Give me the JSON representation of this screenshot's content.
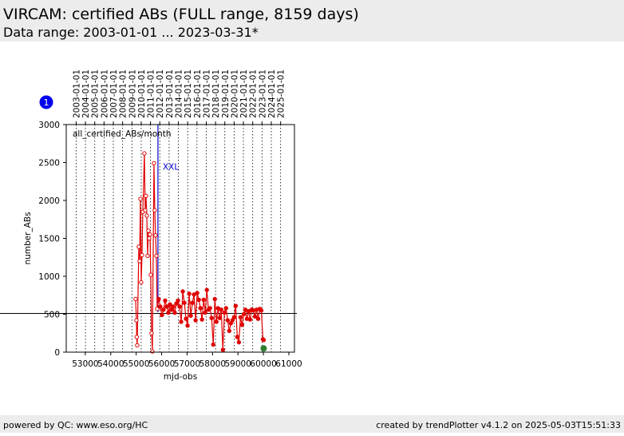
{
  "header": {
    "title": "VIRCAM: certified ABs (FULL range, 8159 days)",
    "subtitle": "Data range: 2003-01-01 ... 2023-03-31*"
  },
  "badge": "1",
  "footer": {
    "left": "powered by QC: www.eso.org/HC",
    "right": "created by trendPlotter v4.1.2 on 2025-05-03T15:51:33"
  },
  "chart_data": {
    "type": "line",
    "x_label": "mjd-obs",
    "y_label": "number_ABs",
    "xlim": [
      52250,
      61220
    ],
    "ylim": [
      0,
      3000
    ],
    "xticks": [
      53000,
      54000,
      55000,
      56000,
      57000,
      58000,
      59000,
      60000,
      61000
    ],
    "yticks": [
      0,
      500,
      1000,
      1500,
      2000,
      2500,
      3000
    ],
    "top_ticks": [
      {
        "value": 52640,
        "label": "2003-01-01"
      },
      {
        "value": 53005,
        "label": "2004-01-01"
      },
      {
        "value": 53371,
        "label": "2005-01-01"
      },
      {
        "value": 53736,
        "label": "2006-01-01"
      },
      {
        "value": 54101,
        "label": "2007-01-01"
      },
      {
        "value": 54466,
        "label": "2008-01-01"
      },
      {
        "value": 54832,
        "label": "2009-01-01"
      },
      {
        "value": 55197,
        "label": "2010-01-01"
      },
      {
        "value": 55562,
        "label": "2011-01-01"
      },
      {
        "value": 55927,
        "label": "2012-01-01"
      },
      {
        "value": 56293,
        "label": "2013-01-01"
      },
      {
        "value": 56658,
        "label": "2014-01-01"
      },
      {
        "value": 57023,
        "label": "2015-01-01"
      },
      {
        "value": 57388,
        "label": "2016-01-01"
      },
      {
        "value": 57754,
        "label": "2017-01-01"
      },
      {
        "value": 58119,
        "label": "2018-01-01"
      },
      {
        "value": 58484,
        "label": "2019-01-01"
      },
      {
        "value": 58849,
        "label": "2020-01-01"
      },
      {
        "value": 59215,
        "label": "2021-01-01"
      },
      {
        "value": 59580,
        "label": "2022-01-01"
      },
      {
        "value": 59945,
        "label": "2023-01-01"
      },
      {
        "value": 60310,
        "label": "2024-01-01"
      },
      {
        "value": 60676,
        "label": "2025-01-01"
      }
    ],
    "reference_line": 510,
    "marker": {
      "x": 55855,
      "label": "XXL",
      "color": "#0000cc"
    },
    "highlight": {
      "x": 60010,
      "value": 50,
      "color": "#2e7d32"
    },
    "series": [
      {
        "name": "all_certified_ABs/month",
        "color": "#e00000",
        "x": [
          54977,
          55009,
          55020,
          55040,
          55103,
          55134,
          55166,
          55197,
          55228,
          55260,
          55322,
          55354,
          55385,
          55416,
          55448,
          55479,
          55510,
          55542,
          55573,
          55605,
          55636,
          55698,
          55730,
          55761,
          55793,
          55824,
          55886,
          55949,
          56012,
          56075,
          56138,
          56201,
          56264,
          56327,
          56390,
          56453,
          56516,
          56579,
          56642,
          56705,
          56768,
          56831,
          56894,
          56957,
          57020,
          57083,
          57146,
          57209,
          57272,
          57335,
          57398,
          57461,
          57524,
          57587,
          57650,
          57713,
          57776,
          57839,
          57902,
          57965,
          58028,
          58091,
          58154,
          58217,
          58280,
          58343,
          58406,
          58469,
          58532,
          58595,
          58658,
          58721,
          58784,
          58847,
          58910,
          58973,
          59036,
          59099,
          59162,
          59225,
          59288,
          59351,
          59414,
          59477,
          59540,
          59603,
          59666,
          59729,
          59792,
          59855,
          59918,
          59981,
          60010
        ],
        "values": [
          700,
          420,
          200,
          90,
          1390,
          1200,
          2020,
          920,
          1280,
          1850,
          2620,
          1870,
          2060,
          1800,
          1270,
          1600,
          1500,
          1550,
          1020,
          250,
          10,
          2490,
          1870,
          1540,
          1270,
          570,
          700,
          600,
          490,
          560,
          680,
          600,
          520,
          630,
          560,
          600,
          520,
          640,
          680,
          600,
          400,
          800,
          650,
          440,
          350,
          770,
          480,
          650,
          760,
          420,
          780,
          690,
          580,
          430,
          690,
          520,
          820,
          560,
          580,
          450,
          100,
          700,
          400,
          580,
          450,
          560,
          30,
          520,
          580,
          420,
          280,
          380,
          420,
          460,
          610,
          200,
          130,
          460,
          360,
          500,
          560,
          440,
          540,
          430,
          560,
          550,
          470,
          560,
          440,
          570,
          550,
          170,
          160
        ]
      }
    ]
  }
}
